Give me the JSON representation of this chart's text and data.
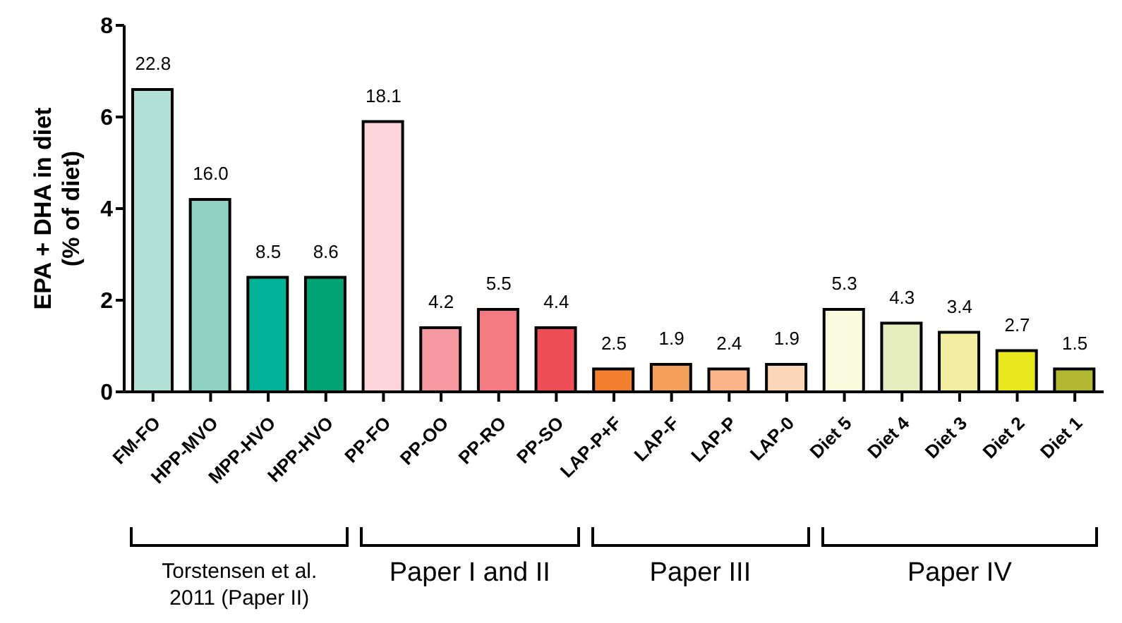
{
  "chart_data": {
    "type": "bar",
    "ylabel": "EPA + DHA in diet\n(% of diet)",
    "categories": [
      "FM-FO",
      "HPP-MVO",
      "MPP-HVO",
      "HPP-HVO",
      "PP-FO",
      "PP-OO",
      "PP-RO",
      "PP-SO",
      "LAP-P+F",
      "LAP-F",
      "LAP-P",
      "LAP-0",
      "Diet 5",
      "Diet 4",
      "Diet 3",
      "Diet 2",
      "Diet 1"
    ],
    "values": [
      6.6,
      4.2,
      2.5,
      2.5,
      5.9,
      1.4,
      1.8,
      1.4,
      0.5,
      0.6,
      0.5,
      0.6,
      1.8,
      1.5,
      1.3,
      0.9,
      0.5
    ],
    "colors": [
      "#b2dfd6",
      "#8fd1c3",
      "#00b398",
      "#00a274",
      "#fcd5da",
      "#f4979f",
      "#f27a80",
      "#ee4e55",
      "#f07f2e",
      "#f5a05a",
      "#f8b68a",
      "#fcd6b9",
      "#fafadf",
      "#e6eec0",
      "#f2f0a0",
      "#e8e81c",
      "#b2b832"
    ],
    "ylim": [
      0,
      8
    ],
    "yticks": [
      0,
      2,
      4,
      6,
      8
    ],
    "grid": false,
    "legend": false,
    "annotations": [
      "Torstensen et al.\n2011 (Paper II)",
      "Paper I and II",
      "Paper III",
      "Paper IV",
      {
        "text": "22.8",
        "x": "FM-FO",
        "y": 6.6
      },
      {
        "text": "16.0",
        "x": "HPP-MVO",
        "y": 4.2
      },
      {
        "text": "8.5",
        "x": "MPP-HVO",
        "y": 2.5
      },
      {
        "text": "8.6",
        "x": "HPP-HVO",
        "y": 2.5
      },
      {
        "text": "18.1",
        "x": "PP-FO",
        "y": 5.9
      },
      {
        "text": "4.2",
        "x": "PP-OO",
        "y": 1.4
      },
      {
        "text": "5.5",
        "x": "PP-RO",
        "y": 1.8
      },
      {
        "text": "4.4",
        "x": "PP-SO",
        "y": 1.4
      },
      {
        "text": "2.5",
        "x": "LAP-P+F",
        "y": 0.5
      },
      {
        "text": "1.9",
        "x": "LAP-F",
        "y": 0.6
      },
      {
        "text": "2.4",
        "x": "LAP-P",
        "y": 0.5
      },
      {
        "text": "1.9",
        "x": "LAP-0",
        "y": 0.6
      },
      {
        "text": "5.3",
        "x": "Diet 5",
        "y": 1.8
      },
      {
        "text": "4.3",
        "x": "Diet 4",
        "y": 1.5
      },
      {
        "text": "3.4",
        "x": "Diet 3",
        "y": 1.3
      },
      {
        "text": "2.7",
        "x": "Diet 2",
        "y": 0.9
      },
      {
        "text": "1.5",
        "x": "Diet 1",
        "y": 0.5
      }
    ]
  }
}
